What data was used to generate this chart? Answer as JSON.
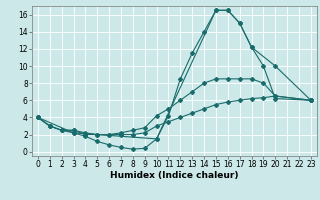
{
  "xlabel": "Humidex (Indice chaleur)",
  "bg_color": "#cce8e8",
  "line_color": "#1a6b6b",
  "grid_color": "#ffffff",
  "xlim": [
    -0.5,
    23.5
  ],
  "ylim": [
    -0.5,
    17
  ],
  "xticks": [
    0,
    1,
    2,
    3,
    4,
    5,
    6,
    7,
    8,
    9,
    10,
    11,
    12,
    13,
    14,
    15,
    16,
    17,
    18,
    19,
    20,
    21,
    22,
    23
  ],
  "yticks": [
    0,
    2,
    4,
    6,
    8,
    10,
    12,
    14,
    16
  ],
  "line1_x": [
    0,
    1,
    2,
    3,
    4,
    5,
    6,
    7,
    8,
    9,
    10,
    11,
    12,
    13,
    14,
    15,
    16,
    17,
    18,
    19,
    20,
    23
  ],
  "line1_y": [
    4,
    3,
    2.5,
    2.2,
    1.8,
    1.2,
    0.8,
    0.5,
    0.3,
    0.4,
    1.5,
    4.2,
    8.5,
    11.5,
    14,
    16.5,
    16.5,
    15,
    12.2,
    10,
    6.2,
    6
  ],
  "line2_x": [
    0,
    1,
    2,
    3,
    4,
    5,
    6,
    7,
    8,
    9,
    10,
    11,
    12,
    13,
    14,
    15,
    16,
    17,
    18,
    19,
    20,
    23
  ],
  "line2_y": [
    4,
    3,
    2.5,
    2.5,
    2,
    2,
    2,
    2.2,
    2.5,
    2.8,
    4.2,
    5,
    6,
    7,
    8,
    8.5,
    8.5,
    8.5,
    8.5,
    8,
    6.5,
    6
  ],
  "line3_x": [
    0,
    1,
    2,
    3,
    4,
    5,
    6,
    7,
    8,
    9,
    10,
    11,
    12,
    13,
    14,
    15,
    16,
    17,
    18,
    19,
    20,
    23
  ],
  "line3_y": [
    4,
    3,
    2.5,
    2.5,
    2.2,
    2,
    2,
    2,
    2,
    2.2,
    3,
    3.5,
    4,
    4.5,
    5,
    5.5,
    5.8,
    6,
    6.2,
    6.3,
    6.5,
    6
  ],
  "line4_x": [
    0,
    3,
    10,
    15,
    16,
    17,
    18,
    20,
    23
  ],
  "line4_y": [
    4,
    2.2,
    1.5,
    16.5,
    16.5,
    15,
    12.2,
    10,
    6
  ],
  "xlabel_fontsize": 6.5,
  "tick_fontsize": 5.5
}
